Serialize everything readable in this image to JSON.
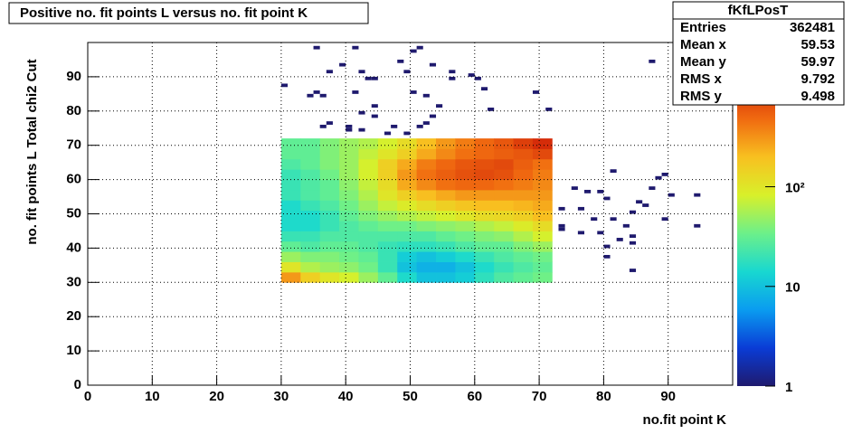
{
  "chart_data": {
    "type": "heatmap",
    "title": "Positive no. fit points L versus no. fit point K",
    "xlabel": "no.fit point K",
    "ylabel": "no. fit points  L   Total chi2 Cut",
    "xlim": [
      0,
      100
    ],
    "ylim": [
      0,
      100
    ],
    "xticks": [
      0,
      10,
      20,
      30,
      40,
      50,
      60,
      70,
      80,
      90
    ],
    "yticks": [
      0,
      10,
      20,
      30,
      40,
      50,
      60,
      70,
      80,
      90
    ],
    "grid": true,
    "zlim": [
      1,
      2800
    ],
    "zticks": [
      1,
      10,
      {
        "value": 100,
        "label": "10²"
      }
    ],
    "colormap": [
      "#1f1a6e",
      "#0a3cd6",
      "#0a9cf0",
      "#18d8d0",
      "#6cf08a",
      "#d8f02a",
      "#f8c020",
      "#f06a10",
      "#d02008",
      "#800000"
    ],
    "outlier_color": "#1f1a6e",
    "xbins": [
      30,
      33,
      36,
      39,
      42,
      45,
      48,
      51,
      54,
      57,
      60,
      63,
      66,
      69,
      72
    ],
    "ybins": [
      30,
      33,
      36,
      39,
      42,
      45,
      48,
      51,
      54,
      57,
      60,
      63,
      66,
      69,
      72
    ],
    "z": [
      [
        300,
        150,
        100,
        80,
        50,
        30,
        15,
        10,
        10,
        12,
        18,
        25,
        30,
        35
      ],
      [
        100,
        60,
        50,
        45,
        35,
        20,
        10,
        8,
        8,
        10,
        15,
        20,
        25,
        30
      ],
      [
        50,
        40,
        40,
        35,
        30,
        20,
        12,
        10,
        12,
        15,
        20,
        25,
        30,
        35
      ],
      [
        30,
        25,
        30,
        30,
        25,
        20,
        18,
        18,
        20,
        25,
        30,
        30,
        40,
        50
      ],
      [
        20,
        20,
        25,
        25,
        25,
        25,
        25,
        25,
        30,
        35,
        40,
        45,
        60,
        80
      ],
      [
        15,
        15,
        20,
        25,
        30,
        35,
        35,
        40,
        45,
        50,
        60,
        70,
        90,
        120
      ],
      [
        15,
        15,
        20,
        30,
        40,
        50,
        60,
        70,
        80,
        100,
        120,
        130,
        150,
        200
      ],
      [
        15,
        20,
        25,
        35,
        50,
        70,
        90,
        120,
        150,
        180,
        200,
        200,
        220,
        250
      ],
      [
        20,
        25,
        30,
        40,
        60,
        100,
        150,
        200,
        250,
        300,
        300,
        300,
        300,
        300
      ],
      [
        20,
        25,
        30,
        45,
        70,
        120,
        250,
        350,
        450,
        500,
        500,
        450,
        400,
        350
      ],
      [
        20,
        25,
        35,
        50,
        80,
        150,
        300,
        450,
        550,
        650,
        700,
        650,
        500,
        400
      ],
      [
        25,
        30,
        40,
        50,
        80,
        150,
        250,
        400,
        500,
        600,
        650,
        700,
        550,
        450
      ],
      [
        30,
        30,
        40,
        50,
        70,
        100,
        150,
        250,
        350,
        450,
        500,
        550,
        600,
        700
      ],
      [
        30,
        30,
        40,
        50,
        60,
        80,
        120,
        200,
        300,
        400,
        500,
        600,
        800,
        1000
      ]
    ],
    "outliers": {
      "x": [
        35,
        41,
        50,
        51,
        48,
        39,
        37,
        30,
        42,
        43,
        44,
        49,
        53,
        56,
        56,
        59,
        60,
        61,
        34,
        35,
        36,
        41,
        50,
        52,
        44,
        54,
        62,
        69,
        71,
        42,
        44,
        53,
        37,
        36,
        40,
        40,
        42,
        47,
        51,
        52,
        46,
        49,
        87,
        81,
        88,
        89,
        87,
        75,
        77,
        79,
        80,
        90,
        94,
        85,
        86,
        73,
        76,
        84,
        78,
        81,
        89,
        73,
        73,
        94,
        83,
        76,
        79,
        82,
        84,
        84,
        80,
        80,
        84
      ],
      "y": [
        98,
        98,
        97,
        98,
        94,
        93,
        91,
        87,
        91,
        89,
        89,
        91,
        93,
        91,
        89,
        90,
        89,
        86,
        84,
        85,
        84,
        85,
        85,
        84,
        81,
        81,
        80,
        85,
        80,
        79,
        78,
        78,
        76,
        75,
        75,
        74,
        74,
        75,
        75,
        76,
        73,
        73,
        94,
        62,
        60,
        61,
        57,
        57,
        56,
        56,
        54,
        55,
        55,
        53,
        52,
        51,
        51,
        50,
        48,
        48,
        48,
        46,
        45,
        46,
        46,
        44,
        44,
        42,
        43,
        41,
        40,
        37,
        33
      ]
    },
    "stats": {
      "title": "fKfLPosT",
      "labels": [
        "Entries",
        "Mean x",
        "Mean y",
        "RMS x",
        "RMS y"
      ],
      "values": [
        362481,
        59.53,
        59.97,
        9.792,
        9.498
      ]
    }
  }
}
